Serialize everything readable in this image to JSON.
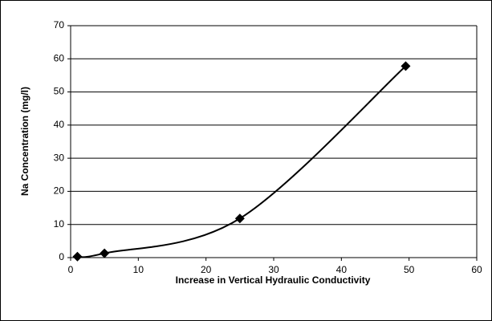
{
  "chart_data": {
    "type": "line",
    "smooth": true,
    "marker": "diamond",
    "x_label": "Increase in Vertical Hydraulic Conductivity",
    "y_label": "Na  Concentration (mg/l)",
    "x": [
      1,
      5,
      25,
      49.5
    ],
    "series": [
      {
        "color": "#000000",
        "values": [
          0.3,
          1.3,
          11.8,
          57.8
        ]
      }
    ],
    "xlim": [
      0,
      60
    ],
    "xticks": [
      0,
      10,
      20,
      30,
      40,
      50,
      60
    ],
    "ylim": [
      0,
      70
    ],
    "yticks": [
      0,
      10,
      20,
      30,
      40,
      50,
      60,
      70
    ],
    "grid": true
  }
}
